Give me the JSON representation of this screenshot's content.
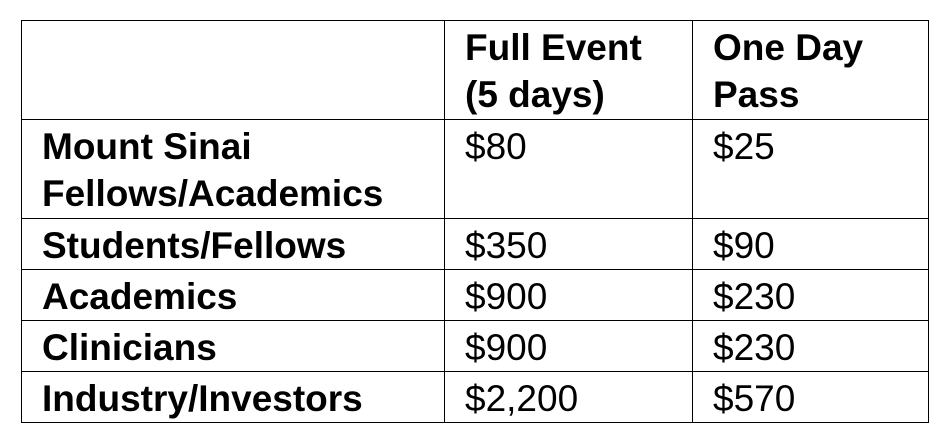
{
  "table": {
    "header": {
      "blank": "",
      "full_event_line1": "Full Event",
      "full_event_line2": "(5 days)",
      "one_day_line1": "One Day",
      "one_day_line2": "Pass"
    },
    "rows": [
      {
        "label_line1": "Mount Sinai",
        "label_line2": "Fellows/Academics",
        "full_event": "$80",
        "one_day": "$25"
      },
      {
        "label_line1": "Students/Fellows",
        "full_event": "$350",
        "one_day": "$90"
      },
      {
        "label_line1": "Academics",
        "full_event": "$900",
        "one_day": "$230"
      },
      {
        "label_line1": "Clinicians",
        "full_event": "$900",
        "one_day": "$230"
      },
      {
        "label_line1": "Industry/Investors",
        "full_event": "$2,200",
        "one_day": "$570"
      }
    ]
  }
}
